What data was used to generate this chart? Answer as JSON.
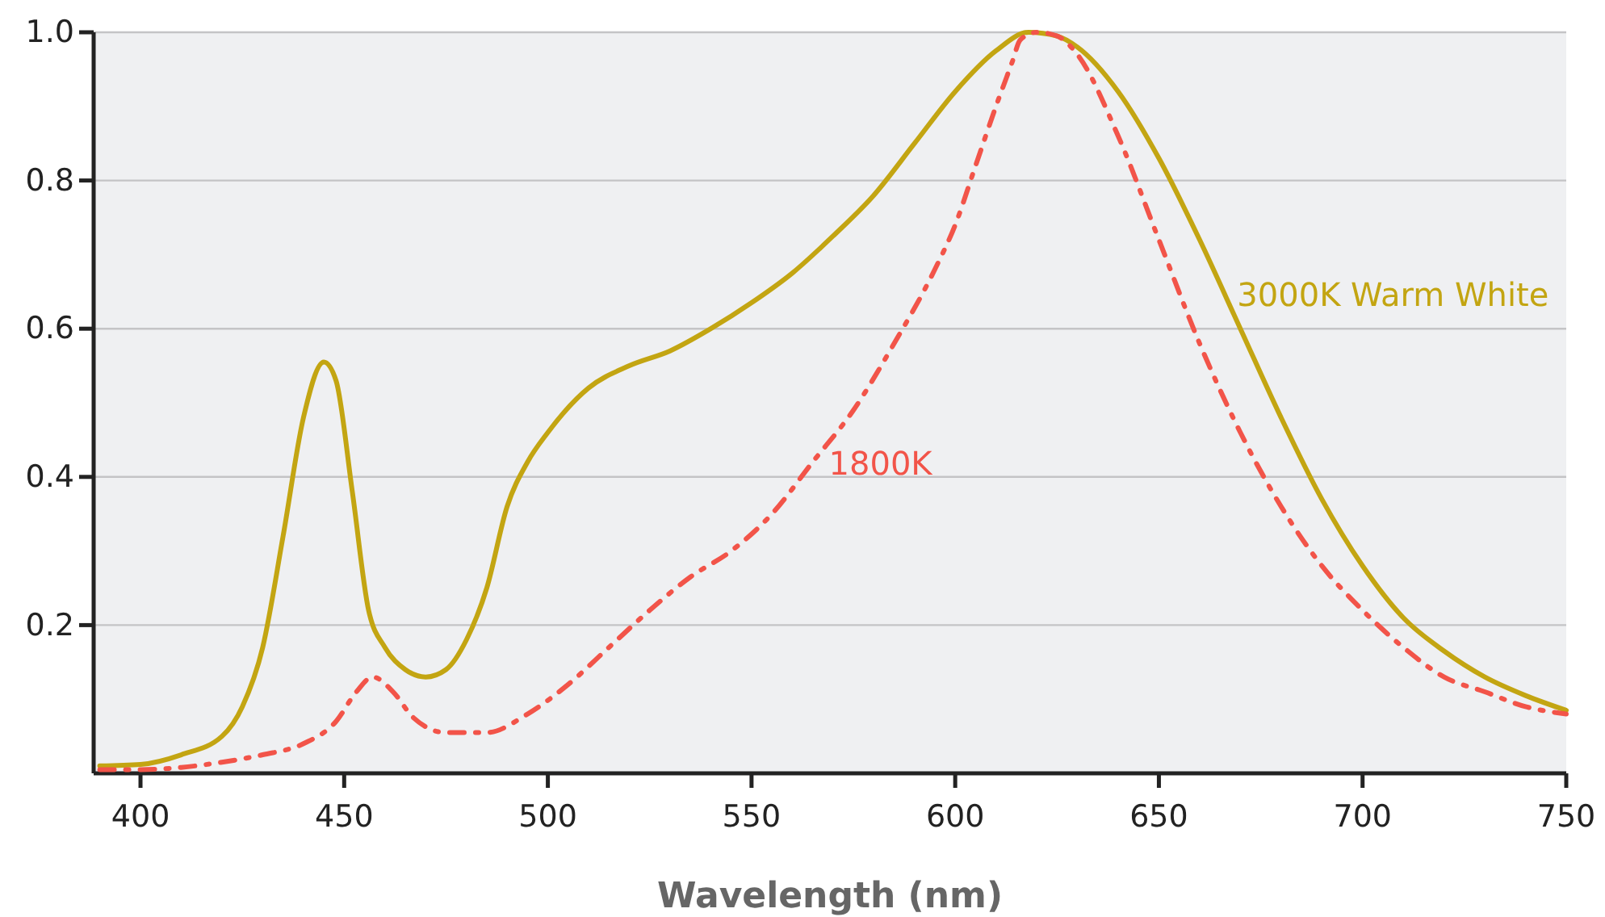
{
  "chart_data": {
    "type": "line",
    "xlabel": "Wavelength (nm)",
    "xlim": [
      388.5,
      750
    ],
    "xticks": [
      400,
      450,
      500,
      550,
      600,
      650,
      700,
      750
    ],
    "ylim": [
      0,
      1
    ],
    "yticks": [
      0.2,
      0.4,
      0.6,
      0.8,
      {
        "value": 1,
        "label": "1.0"
      }
    ],
    "grid": "y",
    "legend": false,
    "marker": "none",
    "series": [
      {
        "name": "3000K Warm White",
        "color": "#c3a512",
        "line_style": "solid",
        "x": [
          390,
          400,
          410,
          420,
          425,
          430,
          435,
          440,
          445,
          448,
          452,
          456,
          460,
          465,
          470,
          475,
          480,
          485,
          490,
          495,
          500,
          510,
          520,
          530,
          540,
          550,
          560,
          570,
          580,
          590,
          600,
          610,
          618,
          625,
          630,
          640,
          650,
          660,
          670,
          680,
          690,
          700,
          710,
          720,
          730,
          740,
          750
        ],
        "values": [
          0.01,
          0.012,
          0.025,
          0.05,
          0.09,
          0.17,
          0.32,
          0.48,
          0.555,
          0.53,
          0.38,
          0.22,
          0.17,
          0.14,
          0.13,
          0.14,
          0.18,
          0.25,
          0.36,
          0.42,
          0.46,
          0.52,
          0.55,
          0.57,
          0.6,
          0.635,
          0.675,
          0.725,
          0.78,
          0.85,
          0.92,
          0.975,
          1.0,
          0.995,
          0.98,
          0.92,
          0.83,
          0.72,
          0.6,
          0.48,
          0.37,
          0.28,
          0.21,
          0.165,
          0.13,
          0.105,
          0.085
        ]
      },
      {
        "name": "1800K",
        "color": "#f25449",
        "line_style": "dashed",
        "x": [
          390,
          400,
          410,
          420,
          430,
          440,
          448,
          453,
          457,
          462,
          467,
          475,
          485,
          495,
          505,
          515,
          525,
          535,
          545,
          555,
          565,
          575,
          585,
          595,
          600,
          605,
          610,
          614,
          616,
          620,
          625,
          630,
          640,
          650,
          660,
          670,
          680,
          690,
          700,
          710,
          720,
          730,
          740,
          750
        ],
        "values": [
          0.005,
          0.005,
          0.008,
          0.015,
          0.025,
          0.04,
          0.07,
          0.11,
          0.13,
          0.11,
          0.075,
          0.055,
          0.055,
          0.08,
          0.12,
          0.17,
          0.22,
          0.265,
          0.3,
          0.35,
          0.42,
          0.49,
          0.58,
          0.68,
          0.74,
          0.82,
          0.9,
          0.96,
          0.99,
          1.0,
          0.995,
          0.97,
          0.86,
          0.72,
          0.58,
          0.46,
          0.36,
          0.28,
          0.22,
          0.17,
          0.13,
          0.11,
          0.09,
          0.08
        ]
      }
    ]
  }
}
